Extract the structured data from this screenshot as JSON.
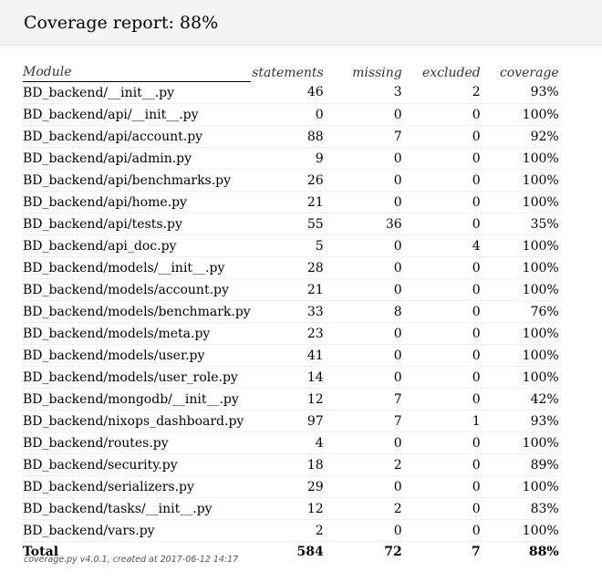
{
  "title": "Coverage report: 88%",
  "columns": {
    "module": "Module",
    "statements": "statements",
    "missing": "missing",
    "excluded": "excluded",
    "coverage": "coverage"
  },
  "rows": [
    {
      "module": "BD_backend/__init__.py",
      "statements": "46",
      "missing": "3",
      "excluded": "2",
      "coverage": "93%"
    },
    {
      "module": "BD_backend/api/__init__.py",
      "statements": "0",
      "missing": "0",
      "excluded": "0",
      "coverage": "100%"
    },
    {
      "module": "BD_backend/api/account.py",
      "statements": "88",
      "missing": "7",
      "excluded": "0",
      "coverage": "92%"
    },
    {
      "module": "BD_backend/api/admin.py",
      "statements": "9",
      "missing": "0",
      "excluded": "0",
      "coverage": "100%"
    },
    {
      "module": "BD_backend/api/benchmarks.py",
      "statements": "26",
      "missing": "0",
      "excluded": "0",
      "coverage": "100%"
    },
    {
      "module": "BD_backend/api/home.py",
      "statements": "21",
      "missing": "0",
      "excluded": "0",
      "coverage": "100%"
    },
    {
      "module": "BD_backend/api/tests.py",
      "statements": "55",
      "missing": "36",
      "excluded": "0",
      "coverage": "35%"
    },
    {
      "module": "BD_backend/api_doc.py",
      "statements": "5",
      "missing": "0",
      "excluded": "4",
      "coverage": "100%"
    },
    {
      "module": "BD_backend/models/__init__.py",
      "statements": "28",
      "missing": "0",
      "excluded": "0",
      "coverage": "100%"
    },
    {
      "module": "BD_backend/models/account.py",
      "statements": "21",
      "missing": "0",
      "excluded": "0",
      "coverage": "100%"
    },
    {
      "module": "BD_backend/models/benchmark.py",
      "statements": "33",
      "missing": "8",
      "excluded": "0",
      "coverage": "76%"
    },
    {
      "module": "BD_backend/models/meta.py",
      "statements": "23",
      "missing": "0",
      "excluded": "0",
      "coverage": "100%"
    },
    {
      "module": "BD_backend/models/user.py",
      "statements": "41",
      "missing": "0",
      "excluded": "0",
      "coverage": "100%"
    },
    {
      "module": "BD_backend/models/user_role.py",
      "statements": "14",
      "missing": "0",
      "excluded": "0",
      "coverage": "100%"
    },
    {
      "module": "BD_backend/mongodb/__init__.py",
      "statements": "12",
      "missing": "7",
      "excluded": "0",
      "coverage": "42%"
    },
    {
      "module": "BD_backend/nixops_dashboard.py",
      "statements": "97",
      "missing": "7",
      "excluded": "1",
      "coverage": "93%"
    },
    {
      "module": "BD_backend/routes.py",
      "statements": "4",
      "missing": "0",
      "excluded": "0",
      "coverage": "100%"
    },
    {
      "module": "BD_backend/security.py",
      "statements": "18",
      "missing": "2",
      "excluded": "0",
      "coverage": "89%"
    },
    {
      "module": "BD_backend/serializers.py",
      "statements": "29",
      "missing": "0",
      "excluded": "0",
      "coverage": "100%"
    },
    {
      "module": "BD_backend/tasks/__init__.py",
      "statements": "12",
      "missing": "2",
      "excluded": "0",
      "coverage": "83%"
    },
    {
      "module": "BD_backend/vars.py",
      "statements": "2",
      "missing": "0",
      "excluded": "0",
      "coverage": "100%"
    }
  ],
  "total": {
    "label": "Total",
    "statements": "584",
    "missing": "72",
    "excluded": "7",
    "coverage": "88%"
  },
  "footer": "coverage.py v4.0.1, created at 2017-06-12 14:17"
}
